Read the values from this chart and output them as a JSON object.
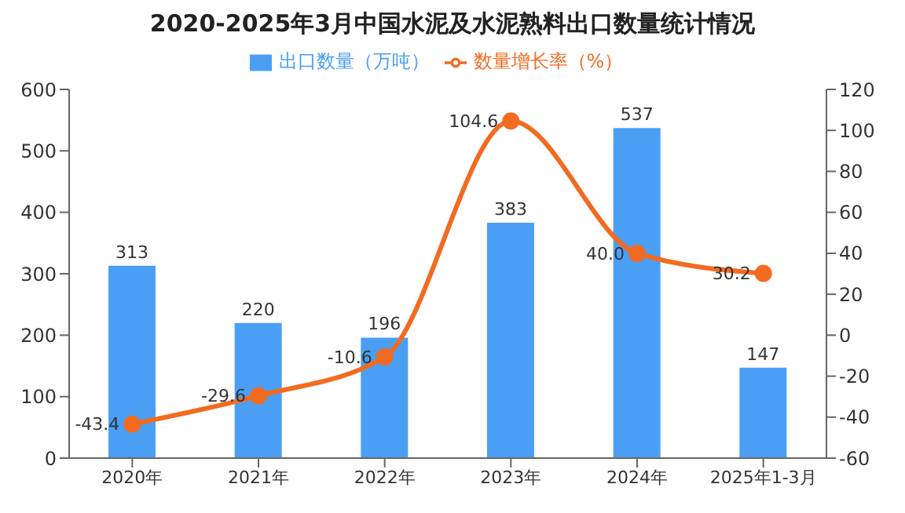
{
  "chart_data": {
    "type": "bar",
    "title": "2020-2025年3月中国水泥及水泥熟料出口数量统计情况",
    "categories": [
      "2020年",
      "2021年",
      "2022年",
      "2023年",
      "2024年",
      "2025年1-3月"
    ],
    "series": [
      {
        "name": "出口数量（万吨）",
        "color": "#4a9ff5",
        "values": [
          313,
          220,
          196,
          383,
          537,
          147
        ],
        "value_labels": [
          "313",
          "220",
          "196",
          "383",
          "537",
          "147"
        ]
      },
      {
        "name": "数量增长率（%）",
        "type": "line",
        "axis": "y2",
        "color": "#f26b21",
        "marker": "circle",
        "values": [
          -43.4,
          -29.6,
          -10.6,
          104.6,
          40.0,
          30.2
        ],
        "value_labels": [
          "-43.4",
          "-29.6",
          "-10.6",
          "104.6",
          "40.0",
          "30.2"
        ]
      }
    ],
    "ylim": [
      0,
      600
    ],
    "yticks": [
      0,
      100,
      200,
      300,
      400,
      500,
      600
    ],
    "y2lim": [
      -60,
      120
    ],
    "y2ticks": [
      -60,
      -40,
      -20,
      0,
      20,
      40,
      60,
      80,
      100,
      120
    ],
    "legend": "top"
  }
}
